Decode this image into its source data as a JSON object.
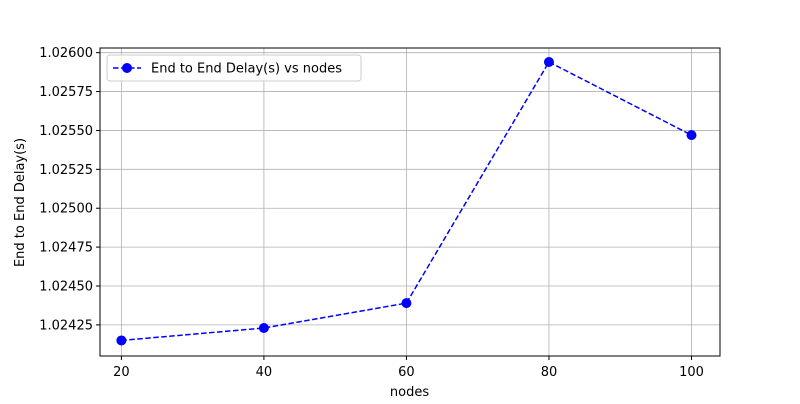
{
  "chart_data": {
    "type": "line",
    "title": "",
    "xlabel": "nodes",
    "ylabel": "End to End Delay(s)",
    "x": [
      20,
      40,
      60,
      80,
      100
    ],
    "series": [
      {
        "name": "End to End Delay(s) vs nodes",
        "values": [
          1.02415,
          1.02423,
          1.02439,
          1.02594,
          1.02547
        ],
        "color": "#0000ff",
        "line_style": "dashed",
        "marker": "circle"
      }
    ],
    "xlim": [
      17,
      104
    ],
    "ylim": [
      1.02405,
      1.02603
    ],
    "xticks": [
      20,
      40,
      60,
      80,
      100
    ],
    "xtick_labels": [
      "20",
      "40",
      "60",
      "80",
      "100"
    ],
    "yticks": [
      1.02425,
      1.0245,
      1.02475,
      1.025,
      1.02525,
      1.0255,
      1.02575,
      1.026
    ],
    "ytick_labels": [
      "1.02425",
      "1.02450",
      "1.02475",
      "1.02500",
      "1.02525",
      "1.02550",
      "1.02575",
      "1.02600"
    ],
    "grid": true,
    "legend_position": "upper-left"
  }
}
